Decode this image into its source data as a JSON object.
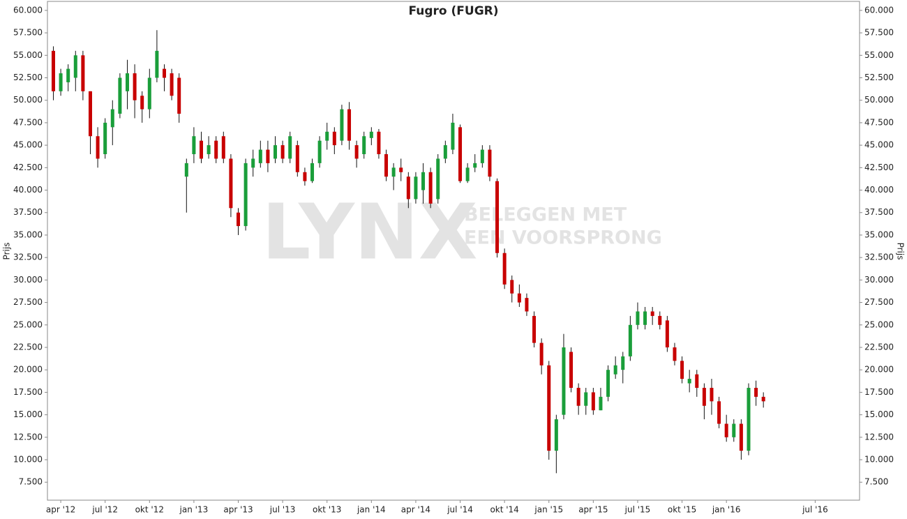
{
  "chart_data": {
    "type": "candlestick",
    "title": "Fugro (FUGR)",
    "y_label": "Prijs",
    "watermark": {
      "logo": "LYNX",
      "line1": "BELEGGEN MET",
      "line2": "EEN VOORSPRONG"
    },
    "up_color": "#1a9e3a",
    "down_color": "#c80000",
    "x": [
      -0.5,
      0,
      0.5,
      1,
      1.5,
      2,
      2.5,
      3,
      3.5,
      4,
      4.5,
      5,
      5.5,
      6,
      6.5,
      7,
      7.5,
      8,
      8.5,
      9,
      9.5,
      10,
      10.5,
      11,
      11.5,
      12,
      12.5,
      13,
      13.5,
      14,
      14.5,
      15,
      15.5,
      16,
      16.5,
      17,
      17.5,
      18,
      18.5,
      19,
      19.5,
      20,
      20.5,
      21,
      21.5,
      22,
      22.5,
      23,
      23.5,
      24,
      24.5,
      25,
      25.5,
      26,
      26.5,
      27,
      27.5,
      28,
      28.5,
      29,
      29.5,
      30,
      30.5,
      31,
      31.5,
      32,
      32.5,
      33,
      33.5,
      34,
      34.5,
      35,
      35.5,
      36,
      36.5,
      37,
      37.5,
      38,
      38.5,
      39,
      39.5,
      40,
      40.5,
      41,
      41.5,
      42,
      42.5,
      43,
      43.5,
      44,
      44.5,
      45,
      45.5,
      46,
      46.5,
      47,
      47.5
    ],
    "open": [
      55.5,
      51,
      52,
      52.5,
      55,
      51,
      46,
      44,
      47,
      48.5,
      51,
      53,
      50.5,
      49,
      52.5,
      53.5,
      53,
      52.5,
      41.5,
      44,
      45.5,
      44,
      45.5,
      46,
      43.5,
      37.5,
      36,
      42.5,
      43,
      44.5,
      43.5,
      45,
      43.5,
      45,
      42,
      41,
      43,
      45.5,
      46.5,
      45.5,
      49,
      45,
      44,
      45.8,
      46.5,
      44,
      41.5,
      42.5,
      41.5,
      39,
      40,
      42,
      39,
      43.5,
      44.5,
      47,
      41,
      42.5,
      43,
      44.5,
      41,
      33,
      30,
      28.5,
      28,
      26,
      23,
      20.5,
      11,
      15,
      22,
      18,
      16,
      17.5,
      15.5,
      17,
      19.5,
      20,
      21.5,
      25,
      25,
      26.5,
      26,
      25.5,
      22.5,
      21,
      18.5,
      19.5,
      18,
      18,
      16.5,
      14,
      12.5,
      14,
      11,
      18,
      17
    ],
    "high": [
      56,
      53.5,
      54,
      55.5,
      55.5,
      51,
      47,
      48,
      50,
      53,
      54.5,
      54,
      51,
      53.5,
      57.8,
      54,
      53.5,
      53,
      43.5,
      47,
      46.5,
      46,
      46,
      46.5,
      44,
      38,
      43.5,
      44.5,
      45.5,
      45.5,
      46,
      45.5,
      46.5,
      45.5,
      42.5,
      43.5,
      46,
      47.5,
      47,
      49.5,
      49.8,
      45.5,
      46.5,
      47,
      46.8,
      44.5,
      43,
      43.5,
      42,
      42,
      43,
      42.5,
      44,
      45.5,
      48.5,
      47.3,
      43,
      44,
      45,
      45,
      41.3,
      33.5,
      30.5,
      29.5,
      28.5,
      26.5,
      23.5,
      21,
      15,
      24,
      22.5,
      18.5,
      18,
      18,
      18,
      20.5,
      21.5,
      22,
      26,
      27.5,
      27,
      27,
      26.5,
      26,
      23,
      21.5,
      20,
      20,
      18.5,
      19,
      17,
      15,
      14.5,
      14.5,
      18.5,
      18.8,
      17.5
    ],
    "low": [
      50,
      50.5,
      51,
      51,
      50,
      44,
      42.5,
      43.5,
      45,
      48,
      49,
      48,
      47.5,
      48,
      52,
      51,
      50,
      47.5,
      37.5,
      43,
      43,
      43.5,
      43,
      43,
      37,
      35,
      35.5,
      41.5,
      42.5,
      42,
      43,
      43,
      43,
      41.5,
      40.5,
      40.8,
      42.5,
      44.5,
      44,
      45,
      44.5,
      42.5,
      43.5,
      45,
      43.5,
      41,
      40,
      41,
      38,
      38.5,
      38.5,
      38,
      38.5,
      43,
      44,
      40.8,
      40.8,
      42,
      42.5,
      41,
      32.5,
      29,
      27.5,
      27,
      26,
      22.5,
      19.5,
      10,
      8.5,
      14.5,
      17.5,
      15,
      15,
      15,
      15.5,
      16.5,
      19,
      18.5,
      21,
      24.5,
      24.5,
      25,
      24.5,
      22,
      20.5,
      18.5,
      17.5,
      17,
      14.5,
      15,
      13.5,
      12,
      12,
      10,
      10.5,
      16,
      15.8
    ],
    "close": [
      51,
      53,
      53.5,
      55,
      51,
      46,
      43.5,
      47.5,
      49,
      52.5,
      53,
      50,
      49,
      52.5,
      55.5,
      52.5,
      50.5,
      48.5,
      43,
      46,
      43.5,
      45,
      43.5,
      43.5,
      38,
      36,
      43,
      43.5,
      44.5,
      43,
      45,
      43.5,
      46,
      42,
      41,
      43,
      45.5,
      46.5,
      45,
      49,
      45.5,
      43.5,
      46,
      46.5,
      44,
      41.5,
      42.5,
      42,
      39,
      41.5,
      42,
      38.5,
      43.5,
      45,
      47.5,
      41,
      42.5,
      43,
      44.5,
      41.5,
      33,
      29.5,
      28.5,
      27.5,
      26.5,
      23,
      20.5,
      11,
      14.5,
      22.5,
      18,
      16,
      17.5,
      15.5,
      17,
      20,
      20.5,
      21.5,
      25,
      26.5,
      26.5,
      26,
      25,
      22.5,
      21,
      19,
      19,
      18,
      16,
      16.5,
      14,
      12.5,
      14,
      11,
      18,
      17,
      16.5
    ],
    "xlim": [
      -0.9,
      54
    ],
    "xticks": [
      {
        "value": 0,
        "label": "apr '12"
      },
      {
        "value": 3,
        "label": "jul '12"
      },
      {
        "value": 6,
        "label": "okt '12"
      },
      {
        "value": 9,
        "label": "jan '13"
      },
      {
        "value": 12,
        "label": "apr '13"
      },
      {
        "value": 15,
        "label": "jul '13"
      },
      {
        "value": 18,
        "label": "okt '13"
      },
      {
        "value": 21,
        "label": "jan '14"
      },
      {
        "value": 24,
        "label": "apr '14"
      },
      {
        "value": 27,
        "label": "jul '14"
      },
      {
        "value": 30,
        "label": "okt '14"
      },
      {
        "value": 33,
        "label": "jan '15"
      },
      {
        "value": 36,
        "label": "apr '15"
      },
      {
        "value": 39,
        "label": "jul '15"
      },
      {
        "value": 42,
        "label": "okt '15"
      },
      {
        "value": 45,
        "label": "jan '16"
      },
      {
        "value": 51,
        "label": "jul '16"
      }
    ],
    "ylim": [
      5.5,
      61
    ],
    "yticks": [
      {
        "value": 7.5,
        "label": "7.500"
      },
      {
        "value": 10,
        "label": "10.000"
      },
      {
        "value": 12.5,
        "label": "12.500"
      },
      {
        "value": 15,
        "label": "15.000"
      },
      {
        "value": 17.5,
        "label": "17.500"
      },
      {
        "value": 20,
        "label": "20.000"
      },
      {
        "value": 22.5,
        "label": "22.500"
      },
      {
        "value": 25,
        "label": "25.000"
      },
      {
        "value": 27.5,
        "label": "27.500"
      },
      {
        "value": 30,
        "label": "30.000"
      },
      {
        "value": 32.5,
        "label": "32.500"
      },
      {
        "value": 35,
        "label": "35.000"
      },
      {
        "value": 37.5,
        "label": "37.500"
      },
      {
        "value": 40,
        "label": "40.000"
      },
      {
        "value": 42.5,
        "label": "42.500"
      },
      {
        "value": 45,
        "label": "45.000"
      },
      {
        "value": 47.5,
        "label": "47.500"
      },
      {
        "value": 50,
        "label": "50.000"
      },
      {
        "value": 52.5,
        "label": "52.500"
      },
      {
        "value": 55,
        "label": "55.000"
      },
      {
        "value": 57.5,
        "label": "57.500"
      },
      {
        "value": 60,
        "label": "60.000"
      }
    ]
  }
}
